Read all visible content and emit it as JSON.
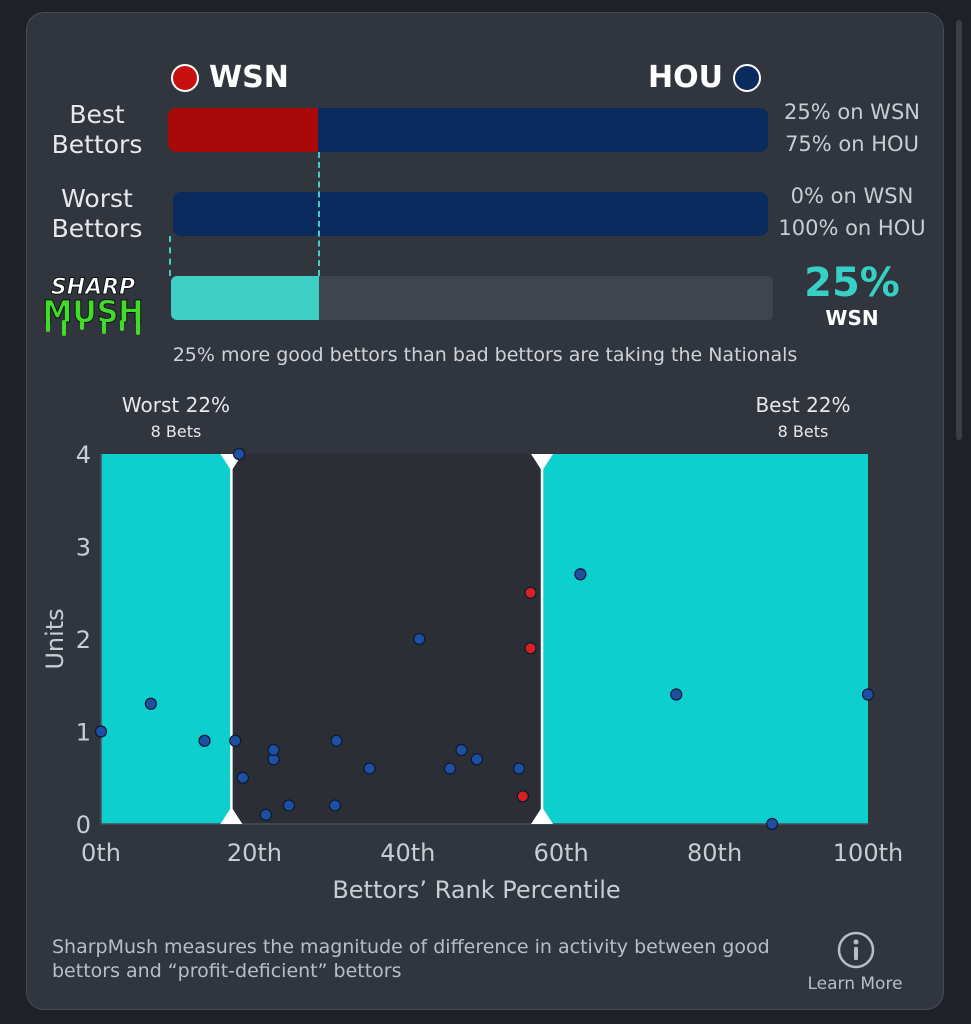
{
  "teams": {
    "away": {
      "abbr": "WSN",
      "color": "#a80a0a"
    },
    "home": {
      "abbr": "HOU",
      "color": "#0b2a5e"
    }
  },
  "rows": [
    {
      "label_line1": "Best",
      "label_line2": "Bettors",
      "away_pct": 25,
      "home_pct": 75,
      "away_text": "25% on WSN",
      "home_text": "75% on HOU"
    },
    {
      "label_line1": "Worst",
      "label_line2": "Bettors",
      "away_pct": 0,
      "home_pct": 100,
      "away_text": "0% on WSN",
      "home_text": "100% on HOU"
    }
  ],
  "sharpmush": {
    "logo_line1": "SHARP",
    "logo_line2": "MUSH",
    "value_pct": 25,
    "value_text": "25%",
    "team": "WSN",
    "fill_color": "#3ed0c4",
    "summary": "25% more good bettors than bad bettors are taking the Nationals"
  },
  "chart_data": {
    "type": "scatter",
    "xlabel": "Bettors’ Rank Percentile",
    "ylabel": "Units",
    "xlim": [
      0,
      100
    ],
    "ylim": [
      0,
      4
    ],
    "x_ticks": [
      {
        "value": 0,
        "label": "0th"
      },
      {
        "value": 20,
        "label": "20th"
      },
      {
        "value": 40,
        "label": "40th"
      },
      {
        "value": 60,
        "label": "60th"
      },
      {
        "value": 80,
        "label": "80th"
      },
      {
        "value": 100,
        "label": "100th"
      }
    ],
    "y_ticks": [
      {
        "value": 0,
        "label": "0"
      },
      {
        "value": 1,
        "label": "1"
      },
      {
        "value": 2,
        "label": "2"
      },
      {
        "value": 3,
        "label": "3"
      },
      {
        "value": 4,
        "label": "4"
      }
    ],
    "regions": [
      {
        "from": 0,
        "to": 17,
        "label": "Worst 22%",
        "sublabel": "8 Bets",
        "color": "#0ccfce"
      },
      {
        "from": 57.5,
        "to": 100,
        "label": "Best 22%",
        "sublabel": "8 Bets",
        "color": "#0ccfce"
      }
    ],
    "series": [
      {
        "team": "WSN",
        "color": "#d92020",
        "points": [
          [
            56,
            2.5
          ],
          [
            56,
            1.9
          ],
          [
            55,
            0.3
          ]
        ]
      },
      {
        "team": "HOU",
        "color": "#1e4fa0",
        "points": [
          [
            0,
            1.0
          ],
          [
            6.5,
            1.3
          ],
          [
            13.5,
            0.9
          ],
          [
            17.5,
            0.9
          ],
          [
            18,
            4.0
          ],
          [
            18.5,
            0.5
          ],
          [
            21.5,
            0.1
          ],
          [
            22.5,
            0.7
          ],
          [
            22.5,
            0.8
          ],
          [
            24.5,
            0.2
          ],
          [
            30.5,
            0.2
          ],
          [
            30.7,
            0.9
          ],
          [
            35,
            0.6
          ],
          [
            41.5,
            2.0
          ],
          [
            45.5,
            0.6
          ],
          [
            47,
            0.8
          ],
          [
            49,
            0.7
          ],
          [
            54.5,
            0.6
          ],
          [
            62.5,
            2.7
          ],
          [
            75,
            1.4
          ],
          [
            87.5,
            0.0
          ],
          [
            100,
            1.4
          ]
        ]
      }
    ]
  },
  "footer": {
    "text": "SharpMush measures the magnitude of difference in activity between good bettors and “profit-deficient” bettors",
    "learn_more": "Learn More"
  }
}
